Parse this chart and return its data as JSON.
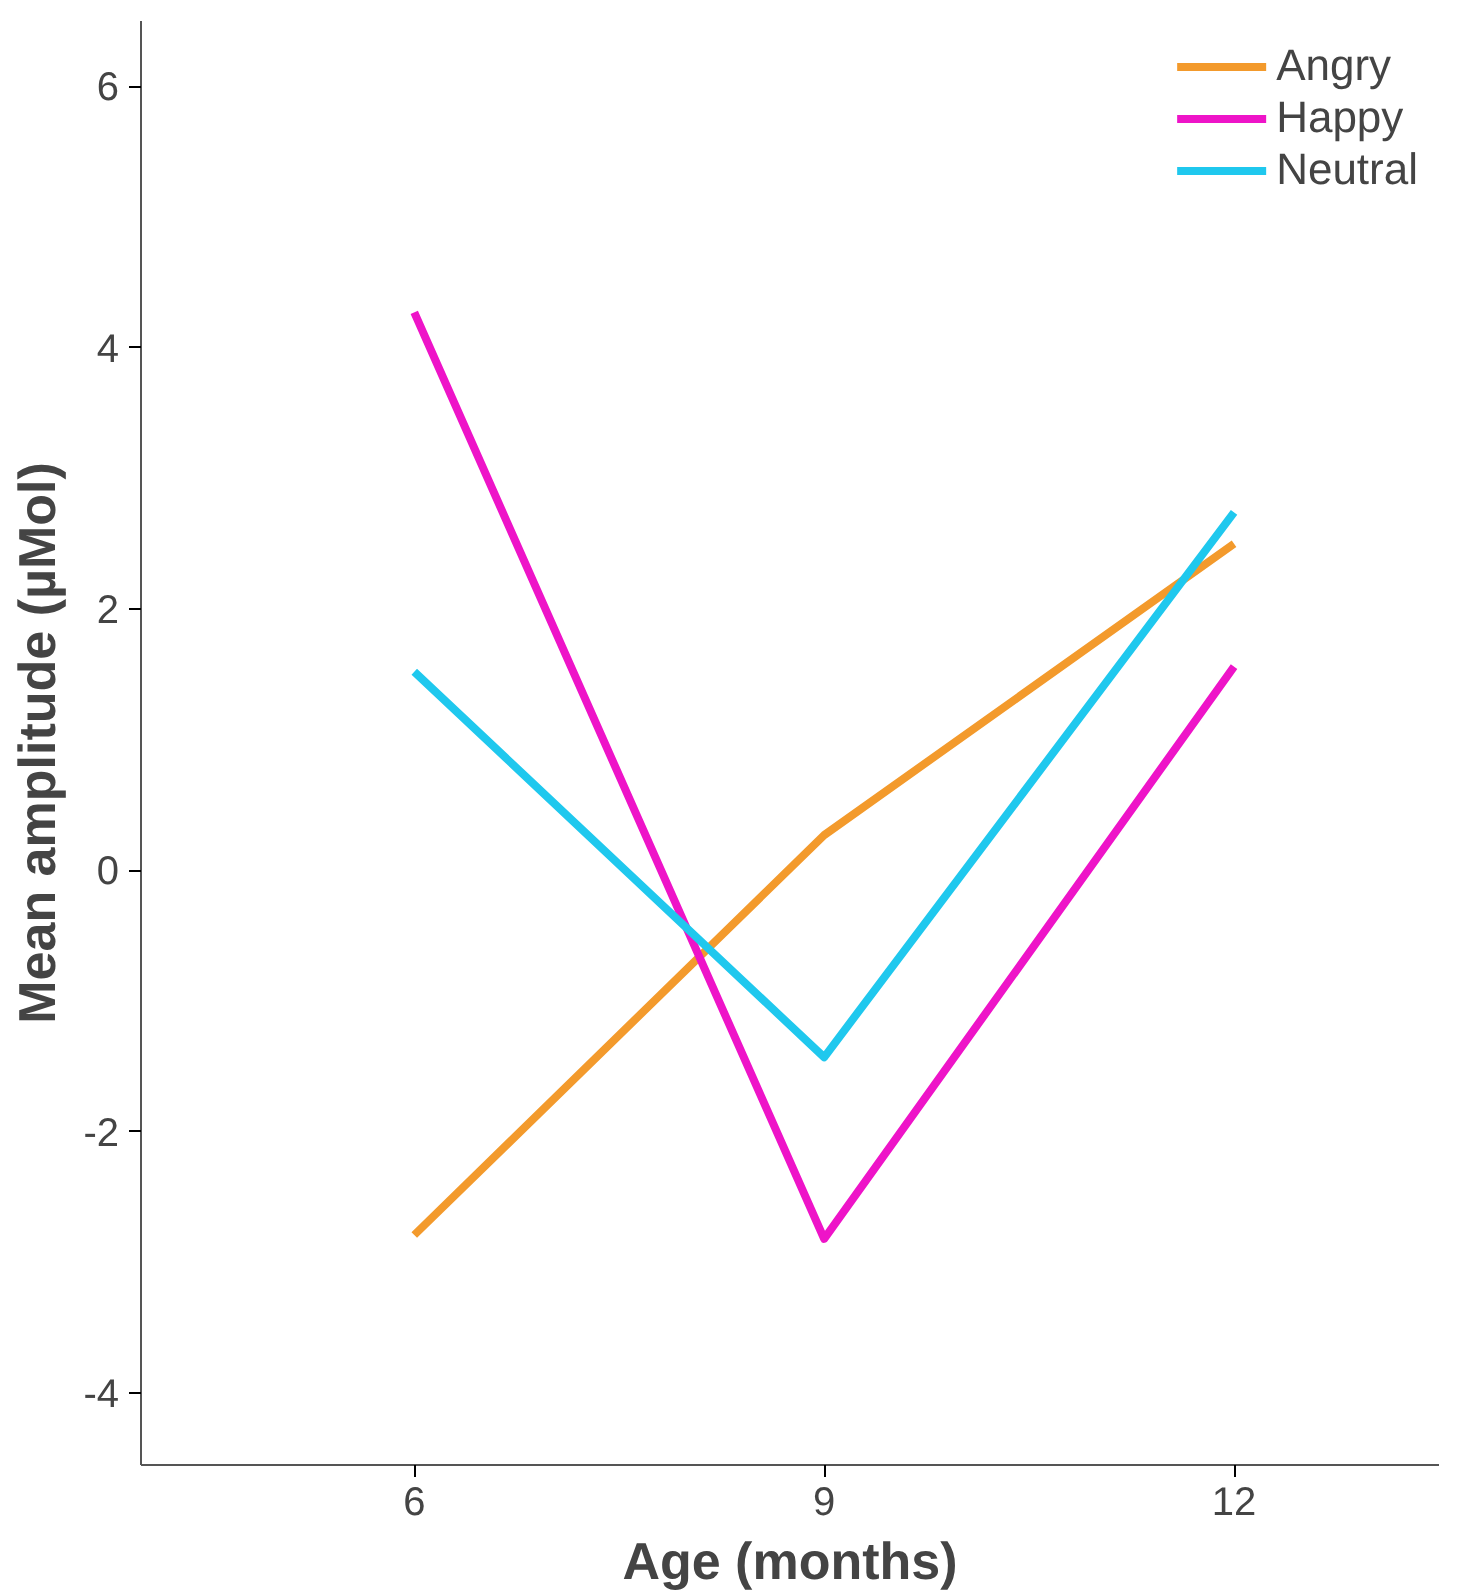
{
  "chart_data": {
    "type": "line",
    "xlabel": "Age (months)",
    "ylabel": "Mean amplitude (µMol)",
    "x": [
      6,
      9,
      12
    ],
    "series": [
      {
        "name": "Angry",
        "color": "#f39a2c",
        "values": [
          -2.79,
          0.27,
          2.5
        ]
      },
      {
        "name": "Happy",
        "color": "#ee14c8",
        "values": [
          4.27,
          -2.82,
          1.56
        ]
      },
      {
        "name": "Neutral",
        "color": "#1fc8ee",
        "values": [
          1.52,
          -1.43,
          2.74
        ]
      }
    ],
    "xlim": [
      4,
      13.5
    ],
    "ylim": [
      -4.55,
      6.5
    ],
    "xticks": [
      6,
      9,
      12
    ],
    "yticks": [
      -4,
      -2,
      0,
      2,
      4,
      6
    ],
    "grid": false,
    "legend": "top right",
    "marker": "none",
    "line_style": "solid"
  }
}
